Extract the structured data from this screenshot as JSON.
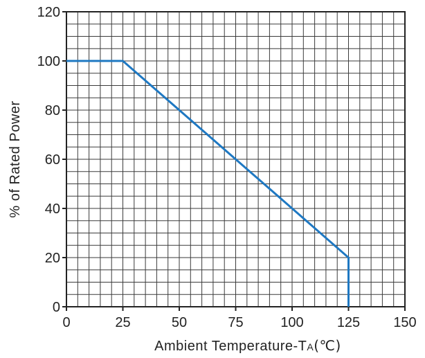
{
  "chart_data": {
    "type": "line",
    "title": "",
    "xlabel_main": "Ambient Temperature-T",
    "xlabel_sub": "A",
    "xlabel_unit": "(℃)",
    "ylabel": "% of Rated Power",
    "xlim": [
      0,
      150
    ],
    "ylim": [
      0,
      120
    ],
    "x_ticks": [
      0,
      25,
      50,
      75,
      100,
      125,
      150
    ],
    "y_ticks": [
      0,
      20,
      40,
      60,
      80,
      100,
      120
    ],
    "x_tick_labels": [
      "0",
      "25",
      "50",
      "75",
      "100",
      "125",
      "150"
    ],
    "y_tick_labels": [
      "0",
      "20",
      "40",
      "60",
      "80",
      "100",
      "120"
    ],
    "grid": true,
    "grid_minor_x_step": 5,
    "grid_minor_y_step": 5,
    "series": [
      {
        "points": [
          [
            0,
            100
          ],
          [
            25,
            100
          ],
          [
            125,
            20
          ],
          [
            125,
            0
          ]
        ],
        "color": "#1e78c2"
      }
    ]
  }
}
